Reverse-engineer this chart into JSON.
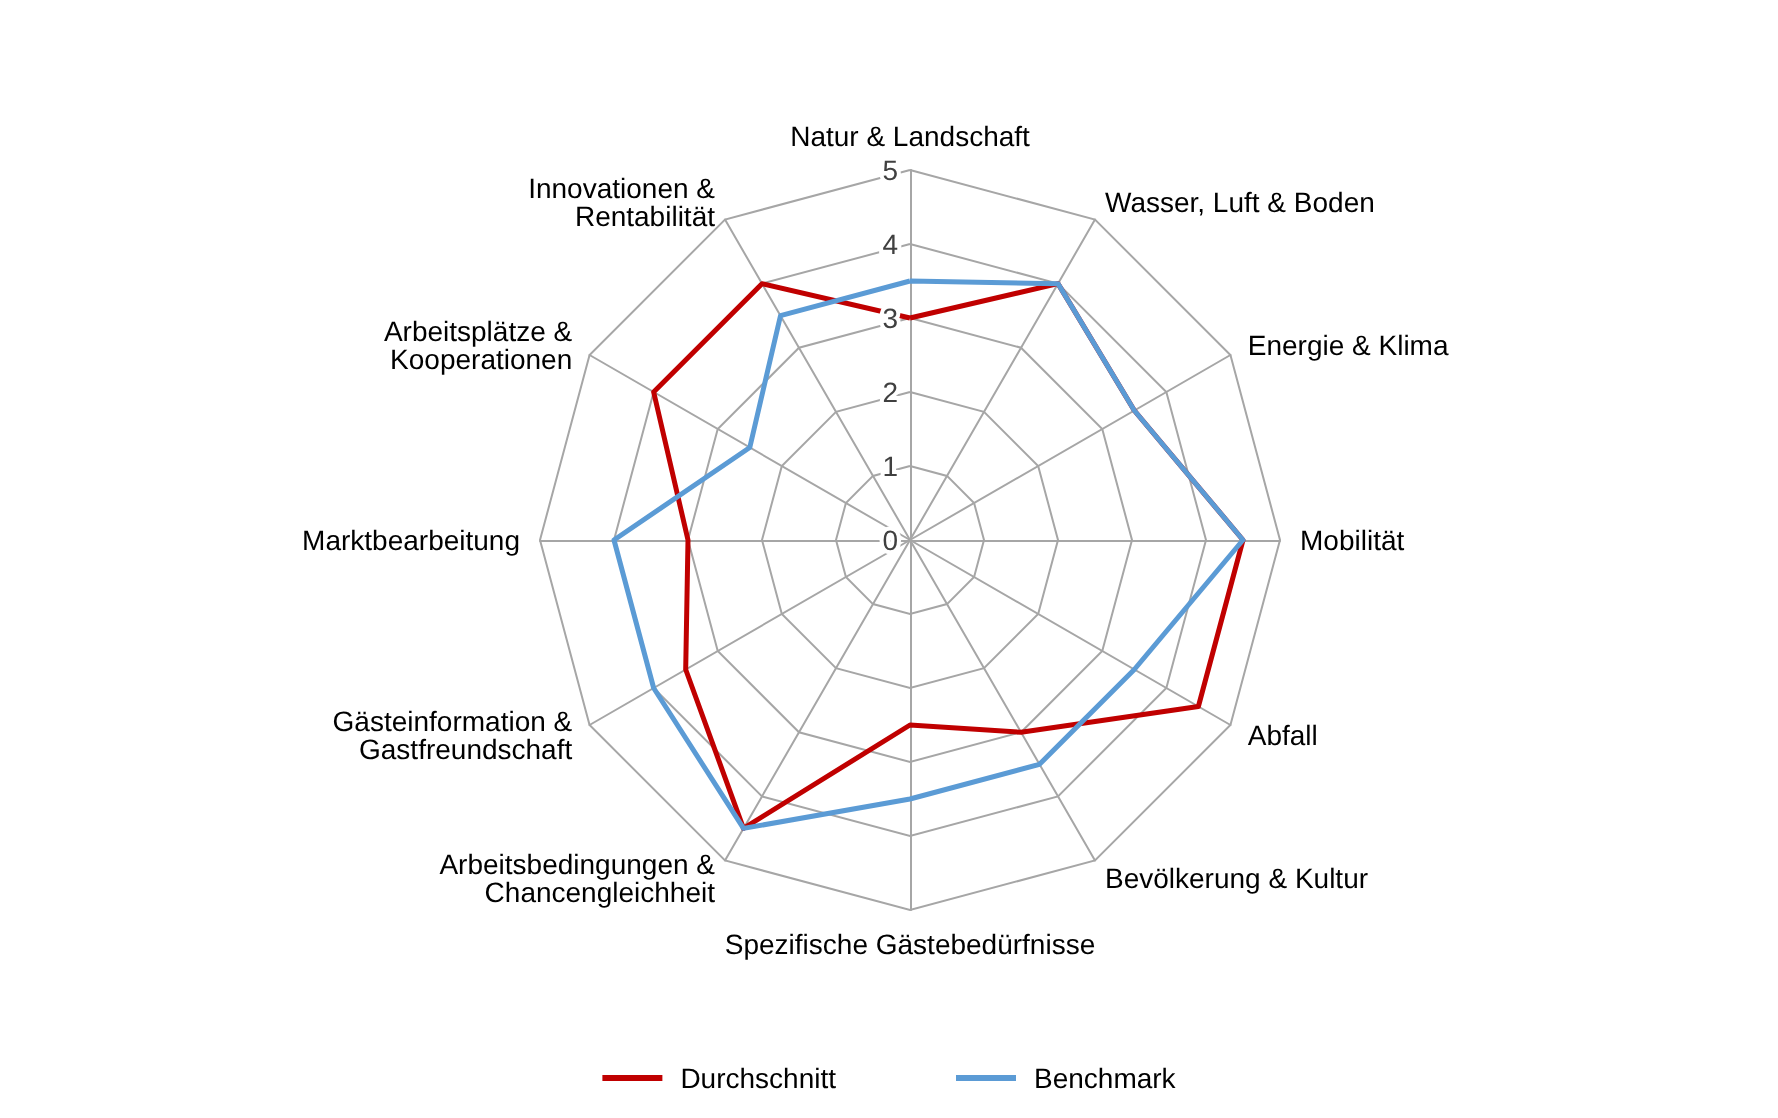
{
  "chart_data": {
    "type": "radar",
    "categories": [
      "Natur & Landschaft",
      "Wasser, Luft & Boden",
      "Energie & Klima",
      "Mobilität",
      "Abfall",
      "Bevölkerung & Kultur",
      "Spezifische Gästebedürfnisse",
      "Arbeitsbedingungen & Chancengleichheit",
      "Gästeinformation & Gastfreundschaft",
      "Marktbearbeitung",
      "Arbeitsplätze & Kooperationen",
      "Innovationen & Rentabilität"
    ],
    "series": [
      {
        "name": "Durchschnitt",
        "color": "#c00000",
        "values": [
          3,
          4,
          3.5,
          4.5,
          4.5,
          3,
          2.5,
          4.5,
          3.5,
          3,
          4,
          4
        ]
      },
      {
        "name": "Benchmark",
        "color": "#5b9bd5",
        "values": [
          3.5,
          4,
          3.5,
          4.5,
          3.5,
          3.5,
          3.5,
          4.5,
          4,
          4,
          2.5,
          3.5
        ]
      }
    ],
    "ylim": [
      0,
      5
    ],
    "yticks": [
      0,
      1,
      2,
      3,
      4,
      5
    ],
    "grid": true,
    "legend": "bottom",
    "marker": "none"
  }
}
